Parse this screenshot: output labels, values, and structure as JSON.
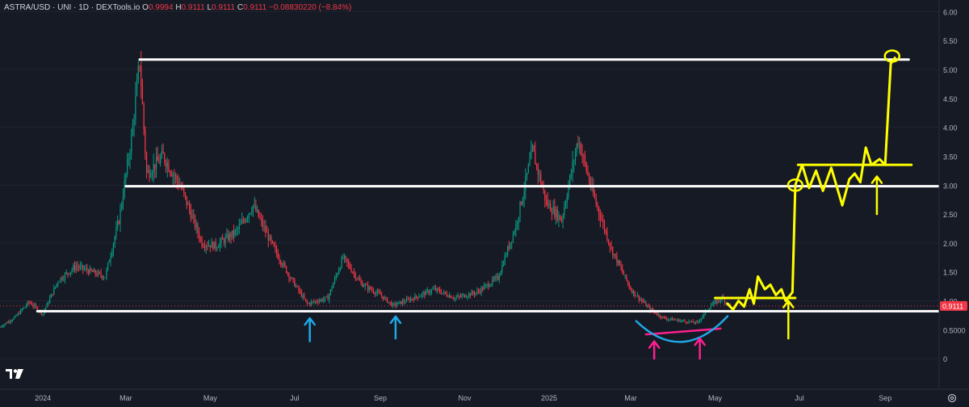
{
  "header": {
    "symbol": "ASTRA/USD · UNI · 1D · DEXTools.io",
    "o_label": "O",
    "o_value": "0.9994",
    "h_label": "H",
    "h_value": "0.9111",
    "l_label": "L",
    "l_value": "0.9111",
    "c_label": "C",
    "c_value": "0.9111",
    "change": "−0.08830220 (−8.84%)"
  },
  "colors": {
    "background": "#161a25",
    "up": "#089981",
    "down": "#f23645",
    "level_line": "#ffffff",
    "projection": "#ffff00",
    "support_arrow": "#1fa8e8",
    "pink_mark": "#ff1f8f",
    "blue_curve": "#1fa8e8"
  },
  "price_axis": {
    "labels": [
      "6.00",
      "5.50",
      "5.00",
      "4.50",
      "4.00",
      "3.50",
      "3.00",
      "2.50",
      "2.00",
      "1.50",
      "1.00",
      "0.5000",
      "0"
    ],
    "last_price_label": "0.9111"
  },
  "chart_data": {
    "type": "candlestick",
    "symbol": "ASTRA/USD",
    "interval": "1D",
    "x_tick_labels": [
      "2024",
      "Mar",
      "May",
      "Jul",
      "Sep",
      "Nov",
      "2025",
      "Mar",
      "May",
      "Jul",
      "Sep"
    ],
    "x_range": [
      "2023-12-01",
      "2025-10-10"
    ],
    "ylim": [
      -0.5,
      6.2
    ],
    "last_price": 0.9111,
    "price_path": [
      [
        "2023-12-01",
        0.55
      ],
      [
        "2023-12-12",
        0.72
      ],
      [
        "2023-12-22",
        0.98
      ],
      [
        "2024-01-01",
        0.78
      ],
      [
        "2024-01-12",
        1.35
      ],
      [
        "2024-01-25",
        1.6
      ],
      [
        "2024-02-05",
        1.5
      ],
      [
        "2024-02-15",
        1.42
      ],
      [
        "2024-02-25",
        2.4
      ],
      [
        "2024-03-05",
        3.8
      ],
      [
        "2024-03-11",
        5.15
      ],
      [
        "2024-03-16",
        3.2
      ],
      [
        "2024-03-28",
        3.5
      ],
      [
        "2024-04-10",
        2.95
      ],
      [
        "2024-04-25",
        2.0
      ],
      [
        "2024-05-05",
        1.95
      ],
      [
        "2024-05-20",
        2.2
      ],
      [
        "2024-06-01",
        2.65
      ],
      [
        "2024-06-15",
        1.95
      ],
      [
        "2024-06-28",
        1.4
      ],
      [
        "2024-07-10",
        0.95
      ],
      [
        "2024-07-25",
        1.05
      ],
      [
        "2024-08-05",
        1.75
      ],
      [
        "2024-08-18",
        1.3
      ],
      [
        "2024-09-01",
        1.1
      ],
      [
        "2024-09-10",
        0.92
      ],
      [
        "2024-09-25",
        1.05
      ],
      [
        "2024-10-10",
        1.2
      ],
      [
        "2024-10-25",
        1.05
      ],
      [
        "2024-11-10",
        1.15
      ],
      [
        "2024-11-25",
        1.4
      ],
      [
        "2024-12-08",
        2.3
      ],
      [
        "2024-12-20",
        3.6
      ],
      [
        "2024-12-30",
        2.7
      ],
      [
        "2025-01-10",
        2.4
      ],
      [
        "2025-01-22",
        3.8
      ],
      [
        "2025-02-01",
        2.9
      ],
      [
        "2025-02-15",
        1.9
      ],
      [
        "2025-03-01",
        1.2
      ],
      [
        "2025-03-15",
        0.85
      ],
      [
        "2025-03-25",
        0.7
      ],
      [
        "2025-04-05",
        0.66
      ],
      [
        "2025-04-18",
        0.62
      ],
      [
        "2025-04-28",
        0.92
      ],
      [
        "2025-05-06",
        1.05
      ],
      [
        "2025-05-12",
        0.9111
      ]
    ],
    "horizontal_levels": [
      {
        "price": 5.17,
        "from": "2024-03-11",
        "to": "2025-09-18"
      },
      {
        "price": 2.98,
        "from": "2024-03-01",
        "to": "2025-10-10"
      },
      {
        "price": 0.82,
        "from": "2023-12-28",
        "to": "2025-10-10"
      },
      {
        "price": 1.05,
        "from": "2025-05-01",
        "to": "2025-06-28"
      },
      {
        "price": 3.35,
        "from": "2025-06-30",
        "to": "2025-09-20"
      }
    ],
    "projection_path": [
      [
        "2025-05-10",
        0.95
      ],
      [
        "2025-05-14",
        0.85
      ],
      [
        "2025-05-18",
        1.0
      ],
      [
        "2025-05-22",
        0.9
      ],
      [
        "2025-05-26",
        1.2
      ],
      [
        "2025-05-29",
        0.95
      ],
      [
        "2025-06-01",
        1.42
      ],
      [
        "2025-06-06",
        1.2
      ],
      [
        "2025-06-10",
        1.28
      ],
      [
        "2025-06-14",
        1.1
      ],
      [
        "2025-06-18",
        1.2
      ],
      [
        "2025-06-21",
        1.0
      ],
      [
        "2025-06-26",
        1.15
      ],
      [
        "2025-06-28",
        3.0
      ],
      [
        "2025-07-03",
        3.35
      ],
      [
        "2025-07-08",
        2.95
      ],
      [
        "2025-07-13",
        3.25
      ],
      [
        "2025-07-18",
        2.9
      ],
      [
        "2025-07-24",
        3.3
      ],
      [
        "2025-08-01",
        2.65
      ],
      [
        "2025-08-06",
        3.1
      ],
      [
        "2025-08-10",
        3.2
      ],
      [
        "2025-08-14",
        3.05
      ],
      [
        "2025-08-18",
        3.65
      ],
      [
        "2025-08-22",
        3.35
      ],
      [
        "2025-08-28",
        3.45
      ],
      [
        "2025-09-01",
        3.35
      ],
      [
        "2025-09-05",
        5.1
      ],
      [
        "2025-09-08",
        5.2
      ]
    ],
    "target_circles": [
      {
        "date": "2025-06-28",
        "price": 3.0
      },
      {
        "date": "2025-09-06",
        "price": 5.23
      }
    ],
    "up_arrows": [
      {
        "date": "2024-07-12",
        "low": 0.3,
        "high": 0.7,
        "color": "blue"
      },
      {
        "date": "2024-09-12",
        "low": 0.35,
        "high": 0.73,
        "color": "blue"
      },
      {
        "date": "2025-03-18",
        "low": 0.0,
        "high": 0.3,
        "color": "pink"
      },
      {
        "date": "2025-04-20",
        "low": 0.0,
        "high": 0.35,
        "color": "pink"
      },
      {
        "date": "2025-06-23",
        "low": 0.35,
        "high": 1.0,
        "color": "yellow"
      },
      {
        "date": "2025-08-26",
        "low": 2.5,
        "high": 3.15,
        "color": "yellow"
      }
    ],
    "rounded_bottom": {
      "from": "2025-03-05",
      "to": "2025-05-10",
      "price_low": 0.25,
      "price_high": 0.65
    },
    "pink_trendline": {
      "from": "2025-03-12",
      "to": "2025-05-05",
      "price_from": 0.42,
      "price_to": 0.52
    }
  }
}
